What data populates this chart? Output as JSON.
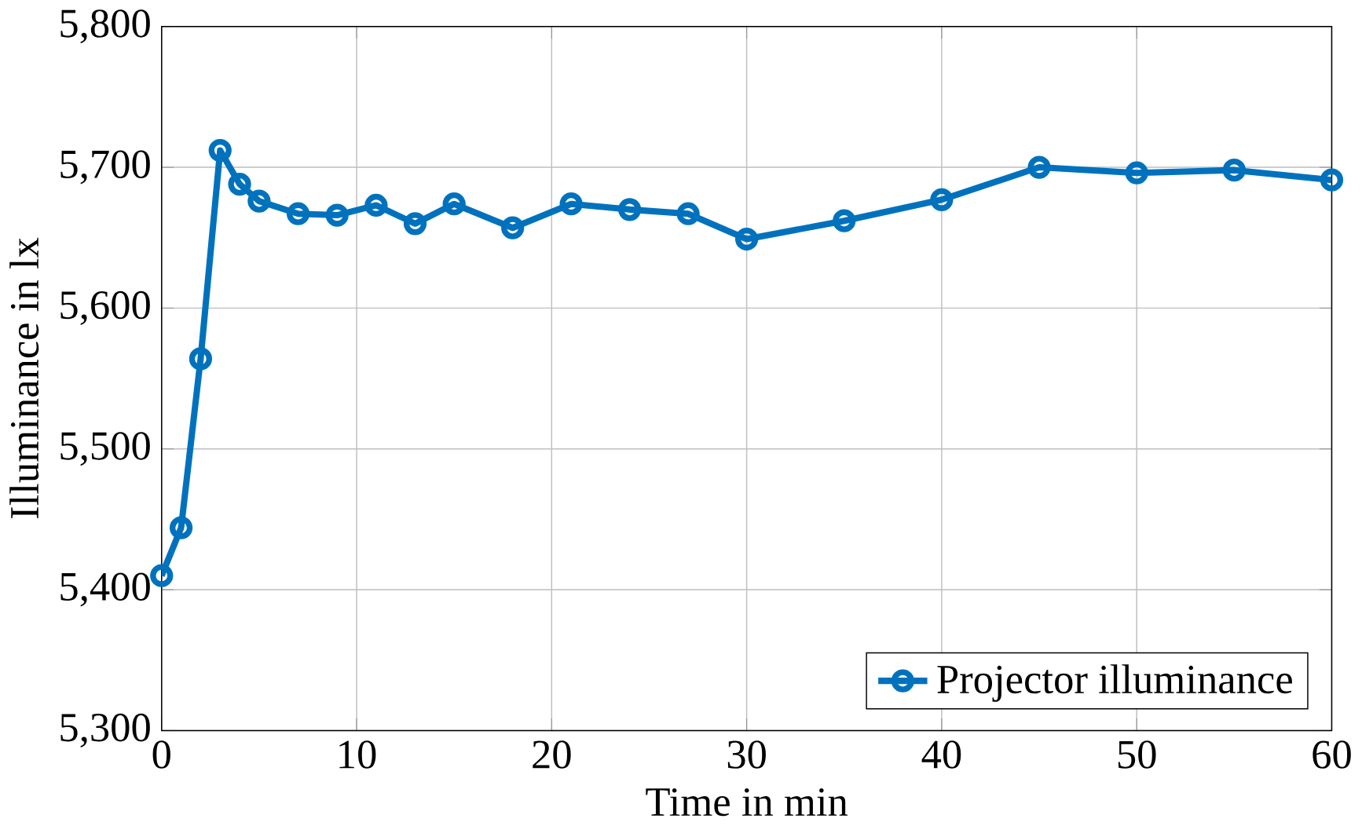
{
  "chart_data": {
    "type": "line",
    "xlabel": "Time in min",
    "ylabel": "Illuminance in lx",
    "x": [
      0,
      1,
      2,
      3,
      4,
      5,
      7,
      9,
      11,
      13,
      15,
      18,
      21,
      24,
      27,
      30,
      35,
      40,
      45,
      50,
      55,
      60
    ],
    "series": [
      {
        "name": "Projector illuminance",
        "color": "#0072bd",
        "values": [
          5410,
          5444,
          5564,
          5712,
          5688,
          5676,
          5667,
          5666,
          5673,
          5660,
          5674,
          5657,
          5674,
          5670,
          5667,
          5649,
          5662,
          5677,
          5700,
          5696,
          5698,
          5691
        ]
      }
    ],
    "xlim": [
      0,
      60
    ],
    "xticks": [
      0,
      10,
      20,
      30,
      40,
      50,
      60
    ],
    "ylim": [
      5300,
      5800
    ],
    "yticks": [
      {
        "value": 5300,
        "label": "5,300"
      },
      {
        "value": 5400,
        "label": "5,400"
      },
      {
        "value": 5500,
        "label": "5,500"
      },
      {
        "value": 5600,
        "label": "5,600"
      },
      {
        "value": 5700,
        "label": "5,700"
      },
      {
        "value": 5800,
        "label": "5,800"
      }
    ],
    "grid": true,
    "legend": "bottom right",
    "marker": "circle",
    "line_style": "solid"
  }
}
